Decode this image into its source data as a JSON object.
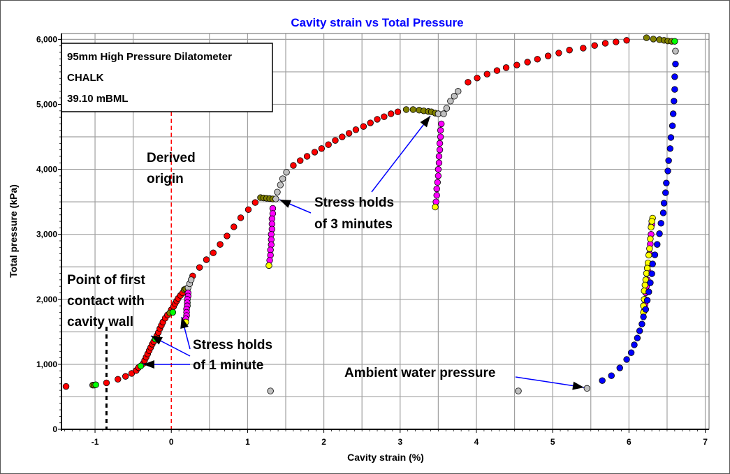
{
  "chart_data": {
    "type": "scatter",
    "title": "Cavity strain vs Total Pressure",
    "xlabel": "Cavity strain (%)",
    "ylabel": "Total pressure (kPa)",
    "xlim": [
      -1.44,
      7.05
    ],
    "ylim": [
      0,
      6090
    ],
    "x_ticks": [
      -1,
      0,
      1,
      2,
      3,
      4,
      5,
      6,
      7
    ],
    "y_ticks": [
      0,
      1000,
      2000,
      3000,
      4000,
      5000,
      6000
    ],
    "y_tick_labels": [
      "0",
      "1,000",
      "2,000",
      "3,000",
      "4,000",
      "5,000",
      "6,000"
    ],
    "grid": true,
    "grid_step_x": 0.5,
    "grid_step_y": 500,
    "colors": {
      "title": "#0000ff",
      "arrow": "#0000ff",
      "origin_line": "#ff0000",
      "contact_line": "#000000"
    },
    "info_box": [
      "95mm High Pressure Dilatometer",
      "CHALK",
      "39.10 mBML"
    ],
    "reference_lines": [
      {
        "label": "Derived origin",
        "x": 0,
        "style": "red-dashed"
      },
      {
        "label": "Point of first contact with cavity wall",
        "x": -0.85,
        "style": "black-dotted"
      }
    ],
    "annotations": {
      "derived_origin": [
        "Derived",
        "origin"
      ],
      "first_contact": [
        "Point of first",
        "contact with",
        "cavity wall"
      ],
      "holds_1min": [
        "Stress holds",
        "of 1 minute"
      ],
      "holds_3min": [
        "Stress holds",
        "of 3 minutes"
      ],
      "ambient": [
        "Ambient water pressure"
      ]
    },
    "series": [
      {
        "color": "#ff0000",
        "points": [
          [
            -1.38,
            660
          ],
          [
            -0.85,
            715
          ],
          [
            -0.7,
            770
          ],
          [
            -0.6,
            815
          ],
          [
            -0.52,
            860
          ],
          [
            -0.46,
            905
          ],
          [
            -0.43,
            950
          ],
          [
            -0.37,
            1010
          ],
          [
            -0.35,
            1060
          ],
          [
            -0.33,
            1110
          ],
          [
            -0.31,
            1160
          ],
          [
            -0.29,
            1210
          ],
          [
            -0.27,
            1260
          ],
          [
            -0.25,
            1310
          ],
          [
            -0.23,
            1350
          ],
          [
            -0.19,
            1440
          ],
          [
            -0.17,
            1490
          ],
          [
            -0.15,
            1550
          ],
          [
            -0.13,
            1600
          ],
          [
            -0.11,
            1650
          ],
          [
            -0.08,
            1710
          ],
          [
            -0.05,
            1760
          ],
          [
            0.0,
            1840
          ],
          [
            0.03,
            1890
          ],
          [
            0.05,
            1935
          ],
          [
            0.07,
            1975
          ],
          [
            0.09,
            2015
          ],
          [
            0.12,
            2060
          ],
          [
            0.15,
            2100
          ],
          [
            0.28,
            2360
          ],
          [
            0.37,
            2490
          ],
          [
            0.46,
            2610
          ],
          [
            0.55,
            2715
          ],
          [
            0.64,
            2845
          ],
          [
            0.73,
            2975
          ],
          [
            0.82,
            3115
          ],
          [
            0.91,
            3255
          ],
          [
            1.01,
            3380
          ],
          [
            1.1,
            3490
          ],
          [
            1.6,
            4060
          ],
          [
            1.69,
            4135
          ],
          [
            1.78,
            4200
          ],
          [
            1.88,
            4265
          ],
          [
            1.97,
            4320
          ],
          [
            2.06,
            4380
          ],
          [
            2.15,
            4445
          ],
          [
            2.24,
            4500
          ],
          [
            2.33,
            4555
          ],
          [
            2.42,
            4610
          ],
          [
            2.52,
            4660
          ],
          [
            2.61,
            4715
          ],
          [
            2.7,
            4770
          ],
          [
            2.79,
            4810
          ],
          [
            2.88,
            4855
          ],
          [
            2.97,
            4885
          ],
          [
            3.89,
            5340
          ],
          [
            4.01,
            5405
          ],
          [
            4.14,
            5465
          ],
          [
            4.27,
            5520
          ],
          [
            4.39,
            5565
          ],
          [
            4.53,
            5605
          ],
          [
            4.67,
            5650
          ],
          [
            4.8,
            5695
          ],
          [
            4.94,
            5745
          ],
          [
            5.08,
            5790
          ],
          [
            5.22,
            5835
          ],
          [
            5.4,
            5865
          ],
          [
            5.55,
            5905
          ],
          [
            5.69,
            5940
          ],
          [
            5.83,
            5960
          ],
          [
            5.97,
            5985
          ]
        ]
      },
      {
        "color": "#808000",
        "points": [
          [
            -1.03,
            680
          ],
          [
            -1.01,
            680
          ],
          [
            -0.02,
            1790
          ],
          [
            0.17,
            2150
          ],
          [
            0.19,
            2160
          ],
          [
            1.17,
            3565
          ],
          [
            1.21,
            3560
          ],
          [
            1.25,
            3555
          ],
          [
            1.29,
            3550
          ],
          [
            1.33,
            3545
          ],
          [
            3.08,
            4920
          ],
          [
            3.17,
            4920
          ],
          [
            3.25,
            4910
          ],
          [
            3.31,
            4900
          ],
          [
            3.37,
            4890
          ],
          [
            3.41,
            4885
          ],
          [
            3.46,
            4865
          ],
          [
            6.23,
            6025
          ],
          [
            6.32,
            6005
          ],
          [
            6.4,
            5995
          ],
          [
            6.46,
            5985
          ],
          [
            6.51,
            5975
          ],
          [
            6.56,
            5970
          ]
        ]
      },
      {
        "color": "#00ff00",
        "points": [
          [
            -0.99,
            685
          ],
          [
            -0.4,
            975
          ],
          [
            -0.21,
            1390
          ],
          [
            0.02,
            1800
          ],
          [
            6.6,
            5970
          ]
        ]
      },
      {
        "color": "#c0c0c0",
        "points": [
          [
            0.22,
            2180
          ],
          [
            0.24,
            2240
          ],
          [
            0.26,
            2300
          ],
          [
            1.37,
            3545
          ],
          [
            1.39,
            3650
          ],
          [
            1.43,
            3760
          ],
          [
            1.46,
            3855
          ],
          [
            1.51,
            3955
          ],
          [
            3.5,
            4855
          ],
          [
            3.57,
            4855
          ],
          [
            3.61,
            4940
          ],
          [
            3.66,
            5050
          ],
          [
            3.71,
            5125
          ],
          [
            3.76,
            5200
          ],
          [
            6.61,
            5820
          ],
          [
            1.3,
            590
          ],
          [
            4.55,
            590
          ],
          [
            5.45,
            630
          ]
        ]
      },
      {
        "color": "#ff00ff",
        "points": [
          [
            0.22,
            2100
          ],
          [
            0.22,
            2050
          ],
          [
            0.21,
            2000
          ],
          [
            0.21,
            1950
          ],
          [
            0.21,
            1900
          ],
          [
            0.2,
            1850
          ],
          [
            0.2,
            1800
          ],
          [
            0.2,
            1750
          ],
          [
            0.19,
            1700
          ],
          [
            1.33,
            3400
          ],
          [
            1.33,
            3320
          ],
          [
            1.32,
            3240
          ],
          [
            1.32,
            3160
          ],
          [
            1.32,
            3080
          ],
          [
            1.31,
            3000
          ],
          [
            1.31,
            2920
          ],
          [
            1.31,
            2840
          ],
          [
            1.3,
            2760
          ],
          [
            1.3,
            2680
          ],
          [
            1.29,
            2600
          ],
          [
            3.54,
            4700
          ],
          [
            3.53,
            4600
          ],
          [
            3.53,
            4500
          ],
          [
            3.52,
            4400
          ],
          [
            3.52,
            4300
          ],
          [
            3.51,
            4200
          ],
          [
            3.51,
            4100
          ],
          [
            3.5,
            4000
          ],
          [
            3.5,
            3900
          ],
          [
            3.49,
            3800
          ],
          [
            3.48,
            3700
          ],
          [
            3.48,
            3600
          ],
          [
            3.47,
            3500
          ],
          [
            6.3,
            3150
          ],
          [
            6.29,
            3000
          ],
          [
            6.28,
            2850
          ],
          [
            6.27,
            2700
          ],
          [
            6.26,
            2550
          ],
          [
            6.25,
            2430
          ],
          [
            6.24,
            2300
          ],
          [
            6.23,
            2200
          ],
          [
            6.22,
            2100
          ],
          [
            6.21,
            2000
          ],
          [
            6.21,
            1920
          ],
          [
            6.2,
            1820
          ]
        ]
      },
      {
        "color": "#ffff00",
        "points": [
          [
            0.19,
            1650
          ],
          [
            1.28,
            2520
          ],
          [
            3.46,
            3420
          ],
          [
            6.31,
            3250
          ],
          [
            6.3,
            3200
          ],
          [
            6.29,
            3110
          ],
          [
            6.28,
            2930
          ],
          [
            6.27,
            2780
          ],
          [
            6.26,
            2680
          ],
          [
            6.25,
            2560
          ],
          [
            6.24,
            2480
          ],
          [
            6.23,
            2400
          ],
          [
            6.22,
            2300
          ],
          [
            6.21,
            2220
          ],
          [
            6.2,
            2130
          ],
          [
            6.2,
            2000
          ],
          [
            6.19,
            1900
          ],
          [
            6.19,
            1800
          ]
        ]
      },
      {
        "color": "#0000ff",
        "points": [
          [
            6.61,
            5620
          ],
          [
            6.6,
            5425
          ],
          [
            6.6,
            5230
          ],
          [
            6.59,
            5050
          ],
          [
            6.58,
            4855
          ],
          [
            6.57,
            4670
          ],
          [
            6.55,
            4490
          ],
          [
            6.54,
            4320
          ],
          [
            6.52,
            4135
          ],
          [
            6.51,
            3975
          ],
          [
            6.49,
            3790
          ],
          [
            6.48,
            3640
          ],
          [
            6.46,
            3480
          ],
          [
            6.45,
            3330
          ],
          [
            6.42,
            3170
          ],
          [
            6.4,
            3010
          ],
          [
            6.37,
            2845
          ],
          [
            6.34,
            2685
          ],
          [
            6.31,
            2545
          ],
          [
            6.3,
            2395
          ],
          [
            6.28,
            2255
          ],
          [
            6.26,
            2115
          ],
          [
            6.24,
            1985
          ],
          [
            6.22,
            1845
          ],
          [
            6.19,
            1730
          ],
          [
            6.17,
            1620
          ],
          [
            6.14,
            1515
          ],
          [
            6.11,
            1405
          ],
          [
            6.07,
            1300
          ],
          [
            6.03,
            1180
          ],
          [
            5.97,
            1075
          ],
          [
            5.88,
            945
          ],
          [
            5.77,
            825
          ],
          [
            5.65,
            750
          ]
        ]
      }
    ]
  }
}
